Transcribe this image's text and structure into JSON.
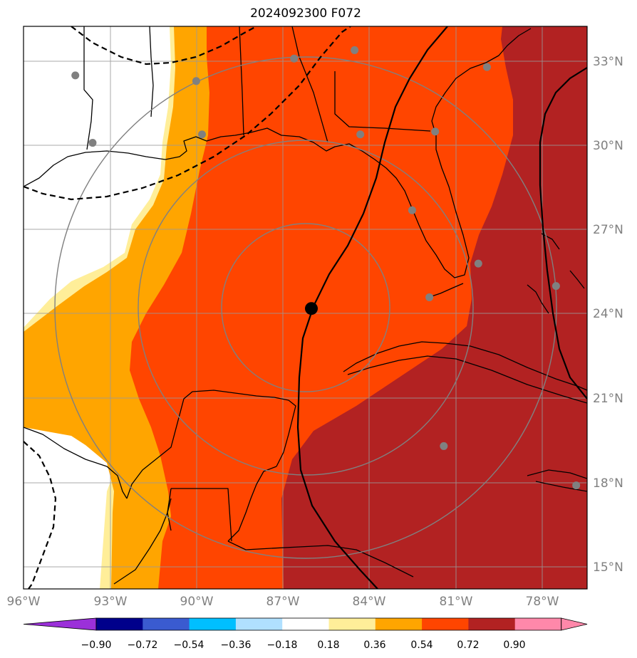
{
  "title": "2024092300 F072",
  "colors": {
    "below_min": "#9b30d9",
    "bins": [
      "#00008b",
      "#3a5bd0",
      "#00bfff",
      "#b0e0ff",
      "#ffffff",
      "#ffee99",
      "#ffa500",
      "#ff4500",
      "#b22222"
    ],
    "above_max": "#ff88aa",
    "land_outline": "#000000",
    "grid": "#999999",
    "range_rings": "#808080",
    "stations": "#808080",
    "storm_center": "#000000"
  },
  "colorbar": {
    "ticks": [
      "−0.90",
      "−0.72",
      "−0.54",
      "−0.36",
      "−0.18",
      "0.18",
      "0.36",
      "0.54",
      "0.72",
      "0.90"
    ],
    "extend": "both"
  },
  "axes": {
    "lon_labels": [
      "96°W",
      "93°W",
      "90°W",
      "87°W",
      "84°W",
      "81°W",
      "78°W"
    ],
    "lat_labels": [
      "33°N",
      "30°N",
      "27°N",
      "24°N",
      "21°N",
      "18°N",
      "15°N"
    ]
  },
  "legend_note": "",
  "storm_center": {
    "lon": -86.0,
    "lat": 24.2
  },
  "stations": [
    {
      "lon": -94.2,
      "lat": 32.5
    },
    {
      "lon": -93.6,
      "lat": 30.1
    },
    {
      "lon": -90.0,
      "lat": 32.3
    },
    {
      "lon": -89.8,
      "lat": 30.4
    },
    {
      "lon": -86.6,
      "lat": 33.1
    },
    {
      "lon": -84.5,
      "lat": 33.4
    },
    {
      "lon": -84.3,
      "lat": 30.4
    },
    {
      "lon": -81.7,
      "lat": 30.5
    },
    {
      "lon": -79.9,
      "lat": 32.8
    },
    {
      "lon": -82.5,
      "lat": 27.7
    },
    {
      "lon": -81.9,
      "lat": 24.6
    },
    {
      "lon": -80.2,
      "lat": 25.8
    },
    {
      "lon": -81.4,
      "lat": 19.3
    },
    {
      "lon": -77.5,
      "lat": 25.0
    },
    {
      "lon": -76.8,
      "lat": 17.9
    }
  ]
}
